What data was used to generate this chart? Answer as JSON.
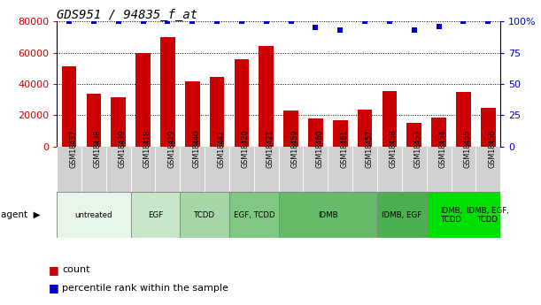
{
  "title": "GDS951 / 94835_f_at",
  "samples": [
    "GSM18437",
    "GSM18438",
    "GSM18439",
    "GSM18418",
    "GSM18419",
    "GSM18440",
    "GSM18441",
    "GSM18420",
    "GSM18421",
    "GSM18459",
    "GSM18460",
    "GSM18461",
    "GSM18457",
    "GSM18458",
    "GSM18453",
    "GSM18454",
    "GSM18455",
    "GSM18456"
  ],
  "counts": [
    51000,
    33500,
    31500,
    59500,
    70000,
    41500,
    44500,
    56000,
    64500,
    23000,
    18000,
    17000,
    23500,
    35500,
    15000,
    18500,
    35000,
    24500
  ],
  "percentiles": [
    100,
    100,
    100,
    100,
    100,
    100,
    100,
    100,
    100,
    100,
    95,
    93,
    100,
    100,
    93,
    96,
    100,
    100
  ],
  "agent_groups": [
    {
      "label": "untreated",
      "start": 0,
      "end": 3,
      "color": "#e8f5e9"
    },
    {
      "label": "EGF",
      "start": 3,
      "end": 5,
      "color": "#c8e6c9"
    },
    {
      "label": "TCDD",
      "start": 5,
      "end": 7,
      "color": "#a5d6a7"
    },
    {
      "label": "EGF, TCDD",
      "start": 7,
      "end": 9,
      "color": "#81c784"
    },
    {
      "label": "IDMB",
      "start": 9,
      "end": 13,
      "color": "#66bb6a"
    },
    {
      "label": "IDMB, EGF",
      "start": 13,
      "end": 15,
      "color": "#4caf50"
    },
    {
      "label": "IDMB,\nTCDD",
      "start": 15,
      "end": 17,
      "color": "#00e000"
    },
    {
      "label": "IDMB, EGF,\nTCDD",
      "start": 17,
      "end": 18,
      "color": "#00e000"
    }
  ],
  "bar_color": "#cc0000",
  "dot_color": "#0000cc",
  "ylim_left": [
    0,
    80000
  ],
  "ylim_right": [
    0,
    100
  ],
  "yticks_left": [
    0,
    20000,
    40000,
    60000,
    80000
  ],
  "yticks_right": [
    0,
    25,
    50,
    75,
    100
  ],
  "sample_bg_color": "#d0d0d0",
  "legend_count_label": "count",
  "legend_pct_label": "percentile rank within the sample"
}
